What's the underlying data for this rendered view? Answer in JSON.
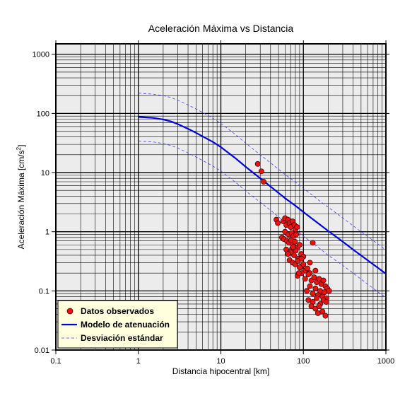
{
  "chart_data": {
    "type": "scatter",
    "title": "Aceleración Máxima vs Distancia",
    "xlabel": "Distancia hipocentral [km]",
    "ylabel": "Aceleración Máxima [cm/s",
    "ylabel_sup": "2",
    "ylabel_end": "]",
    "x_scale": "log",
    "y_scale": "log",
    "xlim": [
      0.1,
      1000
    ],
    "ylim": [
      0.01,
      1500
    ],
    "grid": true,
    "legend_position": "bottom-left",
    "x_ticks": [
      {
        "value": 0.1,
        "label": "0.1"
      },
      {
        "value": 1,
        "label": "1"
      },
      {
        "value": 10,
        "label": "10"
      },
      {
        "value": 100,
        "label": "100"
      },
      {
        "value": 1000,
        "label": "1000"
      }
    ],
    "y_ticks": [
      {
        "value": 0.01,
        "label": "0.01"
      },
      {
        "value": 0.1,
        "label": "0.1"
      },
      {
        "value": 1,
        "label": "1"
      },
      {
        "value": 10,
        "label": "10"
      },
      {
        "value": 100,
        "label": "100"
      },
      {
        "value": 1000,
        "label": "1000"
      }
    ],
    "colors": {
      "points": "#ee1111",
      "model": "#0000dd",
      "deviation": "#4444ee",
      "plot_bg": "#ececec",
      "legend_bg": "#ffffdd"
    },
    "series": [
      {
        "name": "Datos observados",
        "kind": "points",
        "x": [
          28,
          31,
          33,
          47,
          49,
          57,
          60,
          62,
          65,
          68,
          70,
          74,
          78,
          80,
          84,
          60,
          66,
          72,
          76,
          82,
          55,
          58,
          63,
          67,
          71,
          75,
          79,
          85,
          90,
          62,
          68,
          73,
          77,
          81,
          87,
          94,
          100,
          68,
          74,
          80,
          86,
          92,
          98,
          105,
          112,
          120,
          85,
          95,
          105,
          115,
          125,
          135,
          145,
          155,
          165,
          175,
          185,
          195,
          110,
          120,
          130,
          140,
          150,
          160,
          170,
          180,
          190,
          205,
          115,
          130,
          145,
          160,
          175,
          190,
          125,
          140,
          155,
          170,
          150,
          185,
          120,
          100,
          95,
          90,
          88,
          130,
          140,
          75,
          70,
          65
        ],
        "y": [
          14,
          10.5,
          7,
          1.6,
          1.4,
          1.5,
          1.7,
          1.3,
          1.6,
          1.4,
          1.2,
          1.5,
          1.3,
          1.1,
          1.2,
          1.0,
          0.9,
          0.95,
          0.85,
          0.9,
          0.8,
          0.75,
          0.7,
          0.65,
          0.72,
          0.6,
          0.68,
          0.55,
          0.6,
          0.5,
          0.45,
          0.52,
          0.4,
          0.48,
          0.35,
          0.42,
          0.38,
          0.33,
          0.3,
          0.28,
          0.32,
          0.25,
          0.27,
          0.22,
          0.24,
          0.2,
          0.18,
          0.2,
          0.16,
          0.19,
          0.15,
          0.17,
          0.14,
          0.16,
          0.13,
          0.15,
          0.12,
          0.11,
          0.1,
          0.12,
          0.09,
          0.11,
          0.085,
          0.1,
          0.08,
          0.095,
          0.075,
          0.1,
          0.07,
          0.065,
          0.075,
          0.06,
          0.07,
          0.065,
          0.055,
          0.05,
          0.055,
          0.045,
          0.042,
          0.038,
          0.3,
          0.28,
          0.35,
          0.25,
          0.2,
          0.65,
          0.22,
          0.55,
          0.45,
          0.42
        ]
      },
      {
        "name": "Modelo de atenuación",
        "kind": "line",
        "x": [
          1,
          1.5,
          2,
          2.5,
          3,
          4,
          5,
          6,
          8,
          10,
          15,
          20,
          30,
          40,
          60,
          80,
          100,
          150,
          200,
          300,
          400,
          600,
          800,
          1000
        ],
        "y": [
          87,
          84,
          79,
          73,
          66,
          55,
          47,
          41,
          33,
          27,
          17.5,
          12.5,
          8.0,
          5.8,
          3.7,
          2.75,
          2.15,
          1.4,
          1.03,
          0.68,
          0.5,
          0.33,
          0.245,
          0.195
        ]
      },
      {
        "name": "Desviación estándar",
        "kind": "dashed",
        "x": [
          1,
          1.5,
          2,
          2.5,
          3,
          4,
          5,
          6,
          8,
          10,
          15,
          20,
          30,
          40,
          60,
          80,
          100,
          150,
          200,
          300,
          400,
          600,
          800,
          1000
        ],
        "y": [
          220,
          212,
          200,
          185,
          167,
          139,
          119,
          104,
          83,
          68,
          44,
          31.5,
          20,
          14.6,
          9.3,
          6.9,
          5.4,
          3.5,
          2.6,
          1.7,
          1.26,
          0.83,
          0.62,
          0.49
        ]
      },
      {
        "kind": "dashed",
        "x": [
          1,
          1.5,
          2,
          2.5,
          3,
          4,
          5,
          6,
          8,
          10,
          15,
          20,
          30,
          40,
          60,
          80,
          100,
          150,
          200,
          300,
          400,
          600,
          800,
          1000
        ],
        "y": [
          34,
          33,
          31,
          28.5,
          26,
          21.5,
          18.4,
          16,
          12.9,
          10.6,
          6.9,
          4.9,
          3.15,
          2.3,
          1.45,
          1.08,
          0.84,
          0.55,
          0.4,
          0.27,
          0.2,
          0.13,
          0.096,
          0.077
        ]
      }
    ]
  }
}
